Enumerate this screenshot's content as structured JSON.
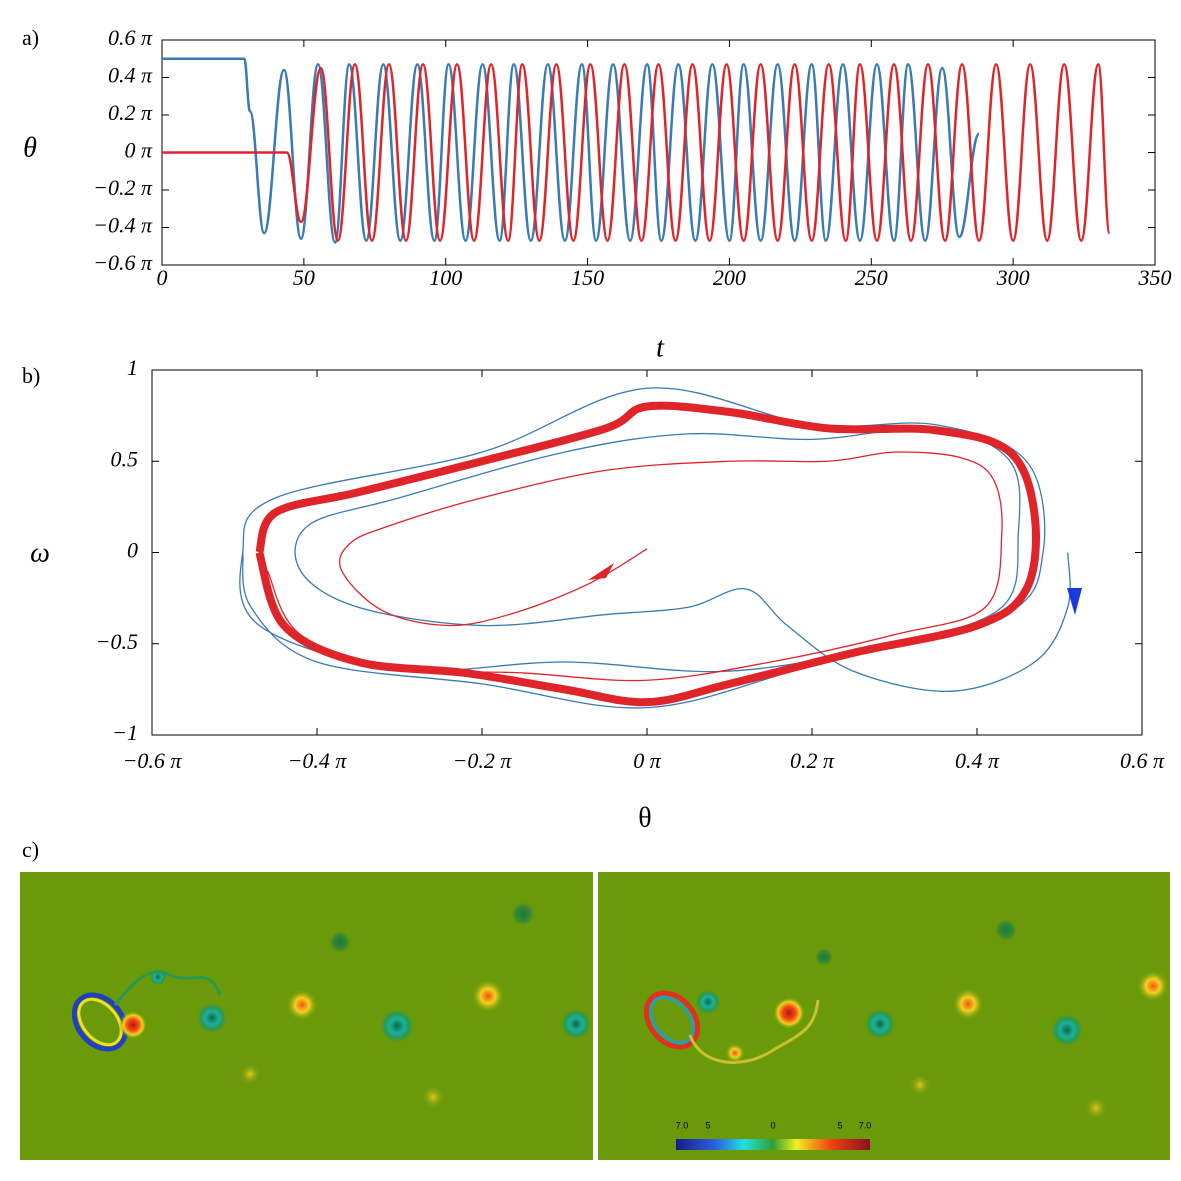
{
  "chart_data": [
    {
      "type": "line",
      "panel_label": "a)",
      "xlabel": "t",
      "ylabel": "θ",
      "xlim": [
        0,
        350
      ],
      "xticks": [
        0,
        50,
        100,
        150,
        200,
        250,
        300,
        350
      ],
      "ylim": [
        -0.6,
        0.6
      ],
      "yticks": [
        {
          "value": -0.6,
          "label": "−0.6 π"
        },
        {
          "value": -0.4,
          "label": "−0.4 π"
        },
        {
          "value": -0.2,
          "label": "−0.2 π"
        },
        {
          "value": 0,
          "label": "0 π"
        },
        {
          "value": 0.2,
          "label": "0.2 π"
        },
        {
          "value": 0.4,
          "label": "0.4 π"
        },
        {
          "value": 0.6,
          "label": "0.6 π"
        }
      ],
      "series": [
        {
          "color": "#3a7ab5",
          "x": [
            0,
            29,
            31,
            36,
            43,
            49,
            55,
            61,
            66,
            72,
            78,
            84,
            90,
            96,
            101,
            107,
            113,
            119,
            124,
            130,
            136,
            142,
            148,
            153,
            159,
            165,
            171,
            176,
            182,
            188,
            194,
            200,
            205,
            211,
            217,
            223,
            229,
            234,
            240,
            246,
            252,
            258,
            263,
            269,
            275,
            281,
            288
          ],
          "values": [
            0.5,
            0.5,
            0.22,
            -0.43,
            0.44,
            -0.46,
            0.47,
            -0.48,
            0.47,
            -0.47,
            0.47,
            -0.47,
            0.47,
            -0.47,
            0.47,
            -0.47,
            0.47,
            -0.47,
            0.47,
            -0.47,
            0.47,
            -0.47,
            0.47,
            -0.47,
            0.47,
            -0.47,
            0.47,
            -0.47,
            0.47,
            -0.47,
            0.47,
            -0.47,
            0.47,
            -0.47,
            0.47,
            -0.47,
            0.47,
            -0.47,
            0.47,
            -0.47,
            0.47,
            -0.47,
            0.47,
            -0.47,
            0.45,
            -0.45,
            0.1
          ]
        },
        {
          "color": "#e0252a",
          "x": [
            0,
            44,
            49,
            56,
            62,
            68,
            74,
            80,
            86,
            92,
            98,
            104,
            110,
            116,
            122,
            127,
            133,
            139,
            145,
            151,
            157,
            163,
            169,
            175,
            181,
            187,
            193,
            199,
            205,
            211,
            217,
            223,
            229,
            235,
            241,
            246,
            252,
            258,
            264,
            270,
            276,
            282,
            288,
            294,
            300,
            306,
            312,
            318,
            324,
            330,
            334
          ],
          "values": [
            0,
            0,
            -0.37,
            0.45,
            -0.47,
            0.47,
            -0.47,
            0.47,
            -0.47,
            0.47,
            -0.47,
            0.47,
            -0.47,
            0.47,
            -0.47,
            0.47,
            -0.47,
            0.47,
            -0.47,
            0.47,
            -0.47,
            0.47,
            -0.47,
            0.47,
            -0.47,
            0.47,
            -0.47,
            0.47,
            -0.47,
            0.47,
            -0.47,
            0.47,
            -0.47,
            0.47,
            -0.47,
            0.47,
            -0.47,
            0.47,
            -0.47,
            0.47,
            -0.47,
            0.47,
            -0.47,
            0.47,
            -0.47,
            0.47,
            -0.47,
            0.47,
            -0.47,
            0.47,
            -0.43
          ]
        }
      ]
    },
    {
      "type": "phase",
      "panel_label": "b)",
      "xlabel": "θ",
      "ylabel": "ω",
      "xlim": [
        -0.6,
        0.6
      ],
      "xticks": [
        {
          "value": -0.6,
          "label": "−0.6 π"
        },
        {
          "value": -0.4,
          "label": "−0.4 π"
        },
        {
          "value": -0.2,
          "label": "−0.2 π"
        },
        {
          "value": 0,
          "label": "0 π"
        },
        {
          "value": 0.2,
          "label": "0.2 π"
        },
        {
          "value": 0.4,
          "label": "0.4 π"
        },
        {
          "value": 0.6,
          "label": "0.6 π"
        }
      ],
      "ylim": [
        -1,
        1
      ],
      "yticks": [
        {
          "value": -1,
          "label": "−1"
        },
        {
          "value": -0.5,
          "label": "−0.5"
        },
        0,
        0.5,
        1
      ],
      "series": [
        {
          "color": "#3a7ab5",
          "width": 1.3,
          "x": [
            0.51,
            0.51,
            0.47,
            0.37,
            0.25,
            0.17,
            0.12,
            0.05,
            -0.05,
            -0.2,
            -0.35,
            -0.42,
            -0.41,
            -0.3,
            -0.1,
            0.05,
            0.2,
            0.35,
            0.44,
            0.45,
            0.43,
            0.3,
            0.1,
            -0.1,
            -0.3,
            -0.47,
            -0.49,
            -0.45,
            -0.2,
            0,
            0.2,
            0.35,
            0.46,
            0.48,
            0.43,
            0.2,
            0,
            -0.2,
            -0.4,
            -0.48,
            -0.49
          ],
          "values": [
            0,
            -0.3,
            -0.6,
            -0.76,
            -0.65,
            -0.4,
            -0.2,
            -0.3,
            -0.34,
            -0.4,
            -0.3,
            -0.1,
            0.15,
            0.3,
            0.55,
            0.65,
            0.62,
            0.68,
            0.5,
            0.1,
            -0.3,
            -0.5,
            -0.65,
            -0.6,
            -0.64,
            -0.4,
            0,
            0.3,
            0.55,
            0.9,
            0.7,
            0.7,
            0.5,
            0,
            -0.35,
            -0.62,
            -0.85,
            -0.72,
            -0.6,
            -0.3,
            0
          ]
        },
        {
          "color": "#e0252a",
          "width": 1.3,
          "x": [
            0,
            -0.07,
            -0.16,
            -0.24,
            -0.32,
            -0.37,
            -0.36,
            -0.31,
            -0.2,
            -0.05,
            0.1,
            0.22,
            0.3,
            0.38,
            0.42,
            0.43,
            0.41,
            0.3,
            0.15,
            0,
            -0.15,
            -0.3,
            -0.42,
            -0.46
          ],
          "values": [
            0.02,
            -0.17,
            -0.33,
            -0.4,
            -0.32,
            -0.1,
            0.05,
            0.15,
            0.3,
            0.45,
            0.5,
            0.5,
            0.55,
            0.52,
            0.4,
            0.1,
            -0.3,
            -0.45,
            -0.6,
            -0.7,
            -0.66,
            -0.63,
            -0.45,
            -0.1
          ]
        },
        {
          "color": "#e0252a",
          "width": 8,
          "x": [
            -0.47,
            -0.45,
            -0.35,
            -0.2,
            -0.05,
            0,
            0.1,
            0.22,
            0.35,
            0.44,
            0.47,
            0.46,
            0.4,
            0.25,
            0.1,
            0,
            -0.1,
            -0.22,
            -0.35,
            -0.44,
            -0.47
          ],
          "values": [
            0,
            0.22,
            0.33,
            0.5,
            0.68,
            0.8,
            0.77,
            0.68,
            0.67,
            0.55,
            0.2,
            -0.2,
            -0.4,
            -0.55,
            -0.72,
            -0.82,
            -0.75,
            -0.66,
            -0.6,
            -0.4,
            0
          ]
        }
      ]
    }
  ],
  "panel_c": {
    "label": "c)",
    "colorbar_labels": [
      "7.0",
      "5",
      "0",
      "5",
      "7.0"
    ]
  }
}
